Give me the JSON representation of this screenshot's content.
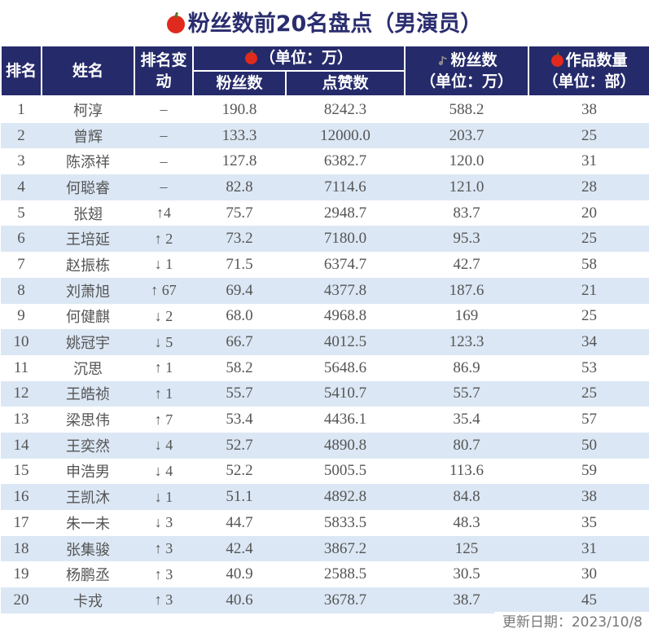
{
  "title": "粉丝数前20名盘点（男演员）",
  "header": {
    "rank": "排名",
    "name": "姓名",
    "change": "排名变动",
    "group_apple": "（单位：万）",
    "fans": "粉丝数",
    "likes": "点赞数",
    "douyin_fans": "粉丝数",
    "douyin_unit": "（单位：万）",
    "works": "作品数量",
    "works_unit": "（单位：部）"
  },
  "rows": [
    {
      "rank": "1",
      "name": "柯淳",
      "change": "–",
      "fans": "190.8",
      "likes": "8242.3",
      "douyin": "588.2",
      "works": "38"
    },
    {
      "rank": "2",
      "name": "曾辉",
      "change": "–",
      "fans": "133.3",
      "likes": "12000.0",
      "douyin": "203.7",
      "works": "25"
    },
    {
      "rank": "3",
      "name": "陈添祥",
      "change": "–",
      "fans": "127.8",
      "likes": "6382.7",
      "douyin": "120.0",
      "works": "31"
    },
    {
      "rank": "4",
      "name": "何聪睿",
      "change": "–",
      "fans": "82.8",
      "likes": "7114.6",
      "douyin": "121.0",
      "works": "28"
    },
    {
      "rank": "5",
      "name": "张翅",
      "change": "↑4",
      "fans": "75.7",
      "likes": "2948.7",
      "douyin": "83.7",
      "works": "20"
    },
    {
      "rank": "6",
      "name": "王培延",
      "change": "↑ 2",
      "fans": "73.2",
      "likes": "7180.0",
      "douyin": "95.3",
      "works": "25"
    },
    {
      "rank": "7",
      "name": "赵振栋",
      "change": "↓ 1",
      "fans": "71.5",
      "likes": "6374.7",
      "douyin": "42.7",
      "works": "58"
    },
    {
      "rank": "8",
      "name": "刘萧旭",
      "change": "↑ 67",
      "fans": "69.4",
      "likes": "4377.8",
      "douyin": "187.6",
      "works": "21"
    },
    {
      "rank": "9",
      "name": "何健麒",
      "change": "↓ 2",
      "fans": "68.0",
      "likes": "4968.8",
      "douyin": "169",
      "works": "25"
    },
    {
      "rank": "10",
      "name": "姚冠宇",
      "change": "↓ 5",
      "fans": "66.7",
      "likes": "4012.5",
      "douyin": "123.3",
      "works": "34"
    },
    {
      "rank": "11",
      "name": "沉思",
      "change": "↑ 1",
      "fans": "58.2",
      "likes": "5648.6",
      "douyin": "86.9",
      "works": "53"
    },
    {
      "rank": "12",
      "name": "王皓祯",
      "change": "↑ 1",
      "fans": "55.7",
      "likes": "5410.7",
      "douyin": "55.7",
      "works": "25"
    },
    {
      "rank": "13",
      "name": "梁思伟",
      "change": "↑ 7",
      "fans": "53.4",
      "likes": "4436.1",
      "douyin": "35.4",
      "works": "57"
    },
    {
      "rank": "14",
      "name": "王奕然",
      "change": "↓ 4",
      "fans": "52.7",
      "likes": "4890.8",
      "douyin": "80.7",
      "works": "50"
    },
    {
      "rank": "15",
      "name": "申浩男",
      "change": "↓ 4",
      "fans": "52.2",
      "likes": "5005.5",
      "douyin": "113.6",
      "works": "59"
    },
    {
      "rank": "16",
      "name": "王凯沐",
      "change": "↓ 1",
      "fans": "51.1",
      "likes": "4892.8",
      "douyin": "84.8",
      "works": "38"
    },
    {
      "rank": "17",
      "name": "朱一未",
      "change": "↓ 3",
      "fans": "44.7",
      "likes": "5833.5",
      "douyin": "48.3",
      "works": "35"
    },
    {
      "rank": "18",
      "name": "张集骏",
      "change": "↑ 3",
      "fans": "42.4",
      "likes": "3867.2",
      "douyin": "125",
      "works": "31"
    },
    {
      "rank": "19",
      "name": "杨鹏丞",
      "change": "↑ 3",
      "fans": "40.9",
      "likes": "2588.5",
      "douyin": "30.5",
      "works": "30"
    },
    {
      "rank": "20",
      "name": "卡戎",
      "change": "↑ 3",
      "fans": "40.6",
      "likes": "3678.7",
      "douyin": "38.7",
      "works": "45"
    }
  ],
  "footer": "更新日期：2023/10/8",
  "colors": {
    "header_bg": "#252a6a",
    "title": "#2a2d6e",
    "alt_row": "#dbe7f4",
    "apple": "#e02a1e"
  },
  "icons": {
    "title": "apple-icon",
    "apple_group": "apple-icon",
    "douyin_group": "music-note-icon",
    "works": "apple-icon"
  }
}
